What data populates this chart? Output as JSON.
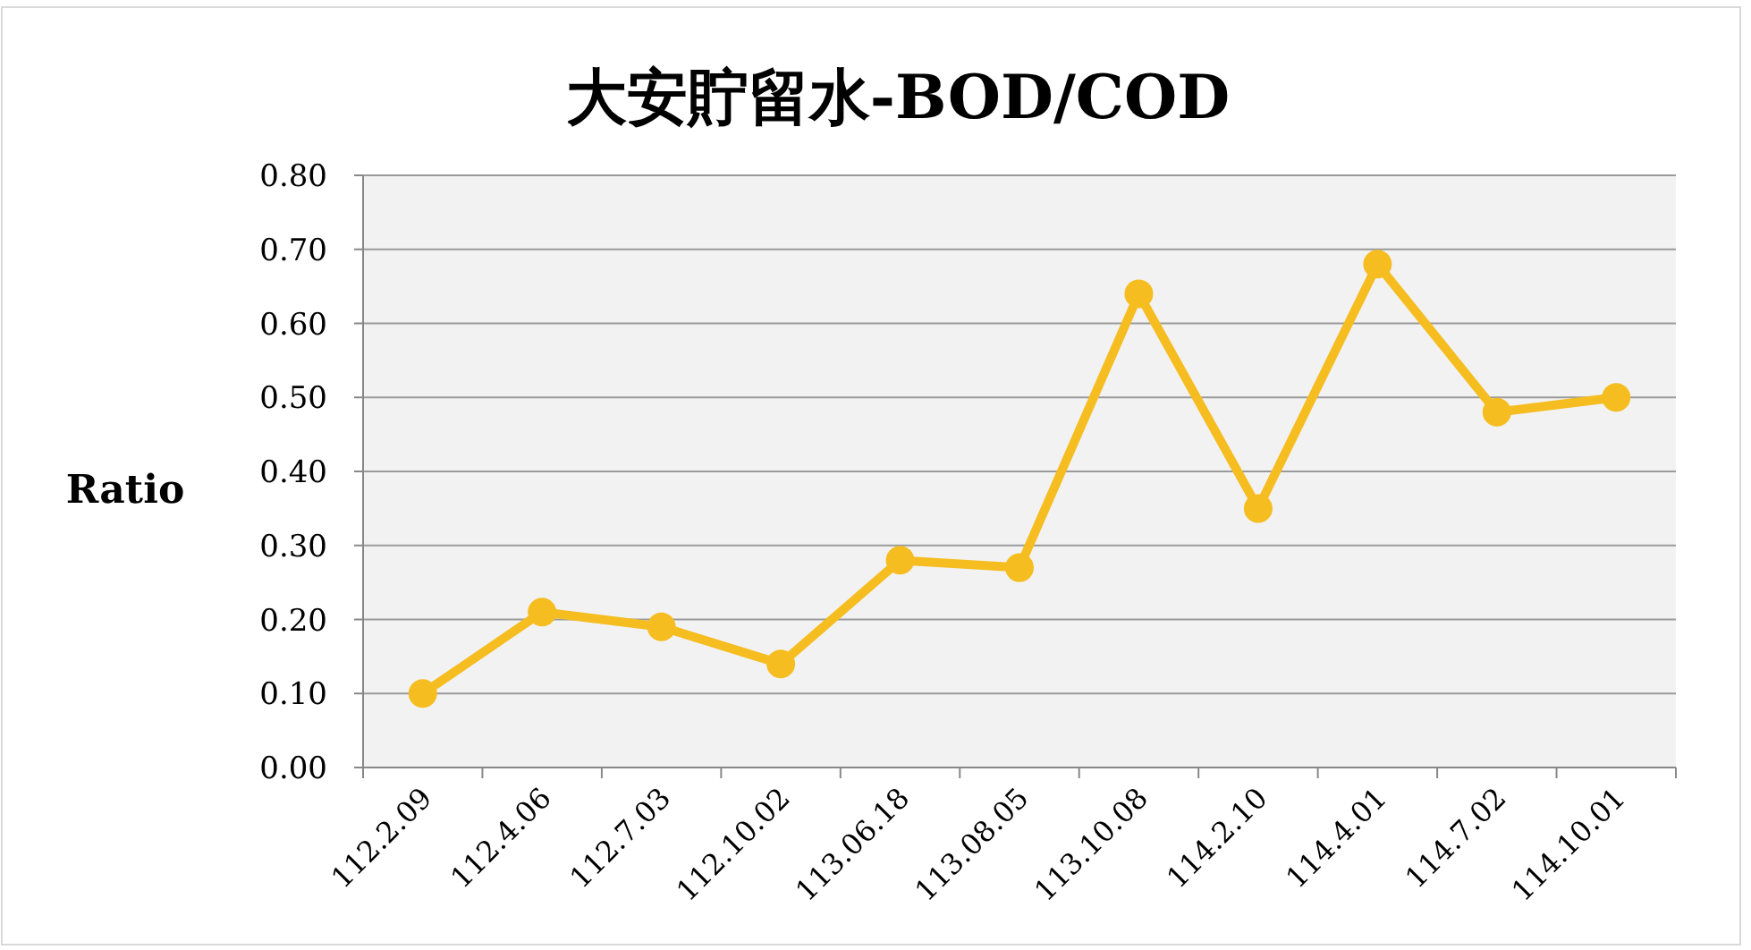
{
  "chart_data": {
    "type": "line",
    "title": "大安貯留水-BOD/COD",
    "ylabel": "Ratio",
    "categories": [
      "112.2.09",
      "112.4.06",
      "112.7.03",
      "112.10.02",
      "113.06.18",
      "113.08.05",
      "113.10.08",
      "114.2.10",
      "114.4.01",
      "114.7.02",
      "114.10.01"
    ],
    "series": [
      {
        "color": "#f5bd1f",
        "values": [
          0.1,
          0.21,
          0.19,
          0.14,
          0.28,
          0.27,
          0.64,
          0.35,
          0.68,
          0.48,
          0.5
        ]
      }
    ],
    "ylim": [
      0,
      0.8
    ],
    "yticks": [
      {
        "value": 0,
        "label": "0.00"
      },
      {
        "value": 0.1,
        "label": "0.10"
      },
      {
        "value": 0.2,
        "label": "0.20"
      },
      {
        "value": 0.3,
        "label": "0.30"
      },
      {
        "value": 0.4,
        "label": "0.40"
      },
      {
        "value": 0.5,
        "label": "0.50"
      },
      {
        "value": 0.6,
        "label": "0.60"
      },
      {
        "value": 0.7,
        "label": "0.70"
      },
      {
        "value": 0.8,
        "label": "0.80"
      }
    ],
    "grid": "y",
    "marker": "circle",
    "line_style": "solid"
  }
}
